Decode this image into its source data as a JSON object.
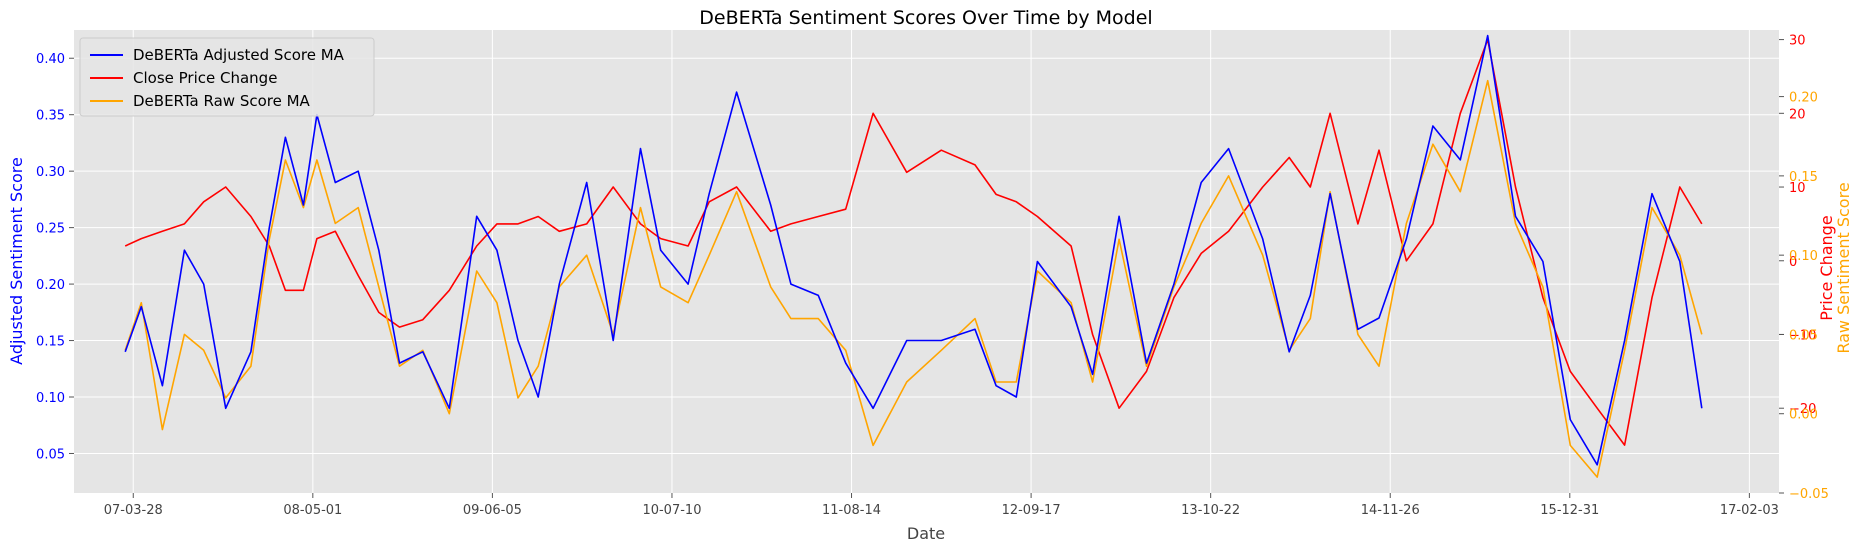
{
  "chart_data": {
    "type": "line",
    "title": "DeBERTa Sentiment Scores Over Time by Model",
    "xlabel": "Date",
    "x_ticks": [
      "07-03-28",
      "08-05-01",
      "09-06-05",
      "10-07-10",
      "11-08-14",
      "12-09-17",
      "13-10-22",
      "14-11-26",
      "15-12-31",
      "17-02-03"
    ],
    "x_range": [
      "2006-11-16",
      "2017-04-10"
    ],
    "grid": true,
    "legend_position": "top-left",
    "axes": {
      "left": {
        "label": "Adjusted Sentiment Score",
        "color": "#0000ff",
        "ylim": [
          0.015,
          0.425
        ],
        "ticks": [
          "0.05",
          "0.10",
          "0.15",
          "0.20",
          "0.25",
          "0.30",
          "0.35",
          "0.40"
        ]
      },
      "right_price": {
        "label": "Price Change",
        "color": "#ff0000",
        "ylim": [
          -31.5,
          31.3
        ],
        "ticks": [
          "−20",
          "−10",
          "0",
          "10",
          "20",
          "30"
        ]
      },
      "right_raw": {
        "label": "Raw Sentiment Score",
        "color": "#ffa500",
        "ylim": [
          -0.05,
          0.242
        ],
        "ticks": [
          "−0.05",
          "0.00",
          "0.05",
          "0.10",
          "0.15",
          "0.20"
        ]
      }
    },
    "series": [
      {
        "name": "DeBERTa Adjusted Score MA",
        "axis": "left",
        "color": "#0000ff",
        "x": [
          "2007-03-10",
          "2007-04-15",
          "2007-06-01",
          "2007-07-20",
          "2007-09-01",
          "2007-10-20",
          "2007-12-15",
          "2008-01-25",
          "2008-03-01",
          "2008-04-10",
          "2008-05-10",
          "2008-06-20",
          "2008-08-10",
          "2008-09-25",
          "2008-11-10",
          "2009-01-01",
          "2009-03-01",
          "2009-05-01",
          "2009-06-15",
          "2009-08-01",
          "2009-09-15",
          "2009-11-01",
          "2010-01-01",
          "2010-03-01",
          "2010-05-01",
          "2010-06-15",
          "2010-08-15",
          "2010-10-01",
          "2010-12-01",
          "2011-02-15",
          "2011-04-01",
          "2011-06-01",
          "2011-08-01",
          "2011-10-01",
          "2011-12-15",
          "2012-03-01",
          "2012-05-15",
          "2012-07-01",
          "2012-08-15",
          "2012-10-01",
          "2012-12-15",
          "2013-02-01",
          "2013-04-01",
          "2013-06-01",
          "2013-08-01",
          "2013-10-01",
          "2013-12-01",
          "2014-02-15",
          "2014-04-15",
          "2014-06-01",
          "2014-07-15",
          "2014-09-15",
          "2014-11-01",
          "2015-01-01",
          "2015-03-01",
          "2015-05-01",
          "2015-07-01",
          "2015-09-01",
          "2015-11-01",
          "2016-01-01",
          "2016-03-01",
          "2016-05-01",
          "2016-07-01",
          "2016-09-01",
          "2016-10-20"
        ],
        "y": [
          0.14,
          0.18,
          0.11,
          0.23,
          0.2,
          0.09,
          0.14,
          0.25,
          0.33,
          0.27,
          0.35,
          0.29,
          0.3,
          0.23,
          0.13,
          0.14,
          0.09,
          0.26,
          0.23,
          0.15,
          0.1,
          0.2,
          0.29,
          0.15,
          0.32,
          0.23,
          0.2,
          0.28,
          0.37,
          0.27,
          0.2,
          0.19,
          0.13,
          0.09,
          0.15,
          0.15,
          0.16,
          0.11,
          0.1,
          0.22,
          0.18,
          0.12,
          0.26,
          0.13,
          0.2,
          0.29,
          0.32,
          0.24,
          0.14,
          0.19,
          0.28,
          0.16,
          0.17,
          0.24,
          0.34,
          0.31,
          0.42,
          0.26,
          0.22,
          0.08,
          0.04,
          0.15,
          0.28,
          0.22,
          0.09
        ]
      },
      {
        "name": "Close Price Change",
        "axis": "right_price",
        "color": "#ff0000",
        "x": [
          "2007-03-10",
          "2007-04-15",
          "2007-06-01",
          "2007-07-20",
          "2007-09-01",
          "2007-10-20",
          "2007-12-15",
          "2008-01-25",
          "2008-03-01",
          "2008-04-10",
          "2008-05-10",
          "2008-06-20",
          "2008-08-10",
          "2008-09-25",
          "2008-11-10",
          "2009-01-01",
          "2009-03-01",
          "2009-05-01",
          "2009-06-15",
          "2009-08-01",
          "2009-09-15",
          "2009-11-01",
          "2010-01-01",
          "2010-03-01",
          "2010-05-01",
          "2010-06-15",
          "2010-08-15",
          "2010-10-01",
          "2010-12-01",
          "2011-02-15",
          "2011-04-01",
          "2011-06-01",
          "2011-08-01",
          "2011-10-01",
          "2011-12-15",
          "2012-03-01",
          "2012-05-15",
          "2012-07-01",
          "2012-08-15",
          "2012-10-01",
          "2012-12-15",
          "2013-02-01",
          "2013-04-01",
          "2013-06-01",
          "2013-08-01",
          "2013-10-01",
          "2013-12-01",
          "2014-02-15",
          "2014-04-15",
          "2014-06-01",
          "2014-07-15",
          "2014-09-15",
          "2014-11-01",
          "2015-01-01",
          "2015-03-01",
          "2015-05-01",
          "2015-07-01",
          "2015-09-01",
          "2015-11-01",
          "2016-01-01",
          "2016-03-01",
          "2016-05-01",
          "2016-07-01",
          "2016-09-01",
          "2016-10-20"
        ],
        "y": [
          2,
          3,
          4,
          5,
          8,
          10,
          6,
          2,
          -4,
          -4,
          3,
          4,
          -2,
          -7,
          -9,
          -8,
          -4,
          2,
          5,
          5,
          6,
          4,
          5,
          10,
          5,
          3,
          2,
          8,
          10,
          4,
          5,
          6,
          7,
          20,
          12,
          15,
          13,
          9,
          8,
          6,
          2,
          -10,
          -20,
          -15,
          -5,
          1,
          4,
          10,
          14,
          10,
          20,
          5,
          15,
          0,
          5,
          20,
          30,
          10,
          -5,
          -15,
          -20,
          -25,
          -5,
          10,
          5
        ]
      },
      {
        "name": "DeBERTa Raw Score MA",
        "axis": "right_raw",
        "color": "#ffa500",
        "x": [
          "2007-03-10",
          "2007-04-15",
          "2007-06-01",
          "2007-07-20",
          "2007-09-01",
          "2007-10-20",
          "2007-12-15",
          "2008-01-25",
          "2008-03-01",
          "2008-04-10",
          "2008-05-10",
          "2008-06-20",
          "2008-08-10",
          "2008-09-25",
          "2008-11-10",
          "2009-01-01",
          "2009-03-01",
          "2009-05-01",
          "2009-06-15",
          "2009-08-01",
          "2009-09-15",
          "2009-11-01",
          "2010-01-01",
          "2010-03-01",
          "2010-05-01",
          "2010-06-15",
          "2010-08-15",
          "2010-10-01",
          "2010-12-01",
          "2011-02-15",
          "2011-04-01",
          "2011-06-01",
          "2011-08-01",
          "2011-10-01",
          "2011-12-15",
          "2012-03-01",
          "2012-05-15",
          "2012-07-01",
          "2012-08-15",
          "2012-10-01",
          "2012-12-15",
          "2013-02-01",
          "2013-04-01",
          "2013-06-01",
          "2013-08-01",
          "2013-10-01",
          "2013-12-01",
          "2014-02-15",
          "2014-04-15",
          "2014-06-01",
          "2014-07-15",
          "2014-09-15",
          "2014-11-01",
          "2015-01-01",
          "2015-03-01",
          "2015-05-01",
          "2015-07-01",
          "2015-09-01",
          "2015-11-01",
          "2016-01-01",
          "2016-03-01",
          "2016-05-01",
          "2016-07-01",
          "2016-09-01",
          "2016-10-20"
        ],
        "y": [
          0.04,
          0.07,
          -0.01,
          0.05,
          0.04,
          0.01,
          0.03,
          0.11,
          0.16,
          0.13,
          0.16,
          0.12,
          0.13,
          0.08,
          0.03,
          0.04,
          0.0,
          0.09,
          0.07,
          0.01,
          0.03,
          0.08,
          0.1,
          0.05,
          0.13,
          0.08,
          0.07,
          0.1,
          0.14,
          0.08,
          0.06,
          0.06,
          0.04,
          -0.02,
          0.02,
          0.04,
          0.06,
          0.02,
          0.02,
          0.09,
          0.07,
          0.02,
          0.11,
          0.03,
          0.08,
          0.12,
          0.15,
          0.1,
          0.04,
          0.06,
          0.14,
          0.05,
          0.03,
          0.12,
          0.17,
          0.14,
          0.21,
          0.12,
          0.08,
          -0.02,
          -0.04,
          0.04,
          0.13,
          0.1,
          0.05
        ]
      }
    ]
  }
}
